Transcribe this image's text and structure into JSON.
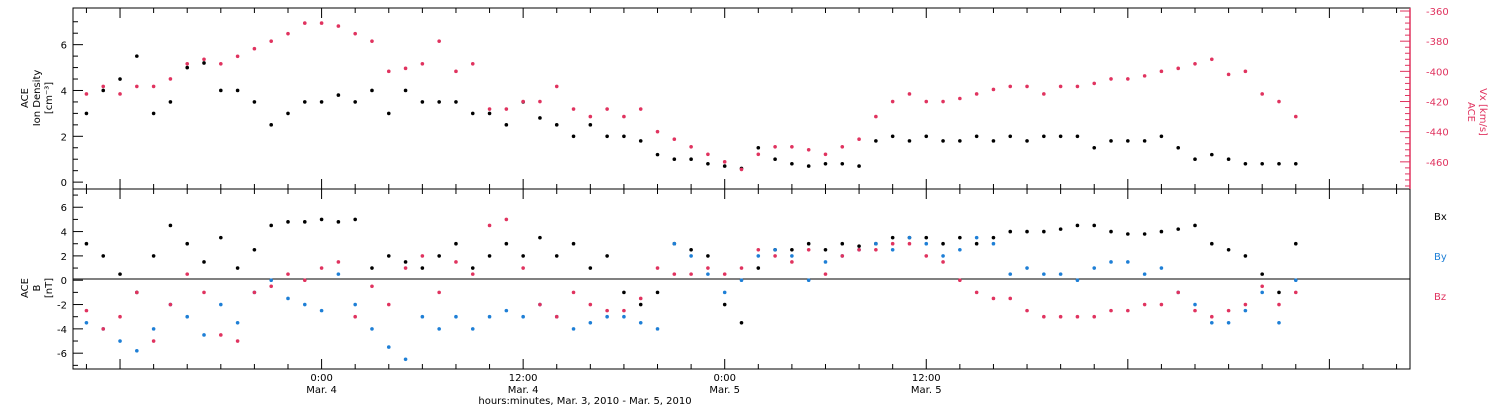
{
  "colors": {
    "black": "#000000",
    "pink": "#e0335f",
    "blue": "#1e7fd6"
  },
  "chart_data": [
    {
      "type": "scatter",
      "panel": "top",
      "ylabel_lines": [
        "ACE",
        "Ion Density",
        "[cm⁻³]"
      ],
      "ylim": [
        -0.3,
        7.6
      ],
      "yticks": [
        0,
        2,
        4,
        6
      ],
      "y2label_lines": [
        "ACE",
        "Vx [km/s]"
      ],
      "y2lim": [
        -478,
        -358
      ],
      "y2ticks": [
        -360,
        -380,
        -400,
        -420,
        -440,
        -460
      ],
      "xlim_hours": [
        -14.8,
        64.8
      ],
      "series": [
        {
          "key": "density",
          "color": "#000000",
          "axis": "left",
          "x": [
            -14,
            -13,
            -12,
            -11,
            -10,
            -9,
            -8,
            -7,
            -6,
            -5,
            -4,
            -3,
            -2,
            -1,
            0,
            1,
            2,
            3,
            4,
            5,
            6,
            7,
            8,
            9,
            10,
            11,
            12,
            13,
            14,
            15,
            16,
            17,
            18,
            19,
            20,
            21,
            22,
            23,
            24,
            25,
            26,
            27,
            28,
            29,
            30,
            31,
            32,
            33,
            34,
            35,
            36,
            37,
            38,
            39,
            40,
            41,
            42,
            43,
            44,
            45,
            46,
            47,
            48,
            49,
            50,
            51,
            52,
            53,
            54,
            55,
            56,
            57,
            58
          ],
          "y": [
            3.0,
            4.0,
            4.5,
            5.5,
            3.0,
            3.5,
            5.0,
            5.2,
            4.0,
            4.0,
            3.5,
            2.5,
            3.0,
            3.5,
            3.5,
            3.8,
            3.5,
            4.0,
            3.0,
            4.0,
            3.5,
            3.5,
            3.5,
            3.0,
            3.0,
            2.5,
            3.5,
            2.8,
            2.5,
            2.0,
            2.5,
            2.0,
            2.0,
            1.8,
            1.2,
            1.0,
            1.0,
            0.8,
            0.7,
            0.6,
            1.5,
            1.0,
            0.8,
            0.7,
            0.8,
            0.8,
            0.7,
            1.8,
            2.0,
            1.8,
            2.0,
            1.8,
            1.8,
            2.0,
            1.8,
            2.0,
            1.8,
            2.0,
            2.0,
            2.0,
            1.5,
            1.8,
            1.8,
            1.8,
            2.0,
            1.5,
            1.0,
            1.2,
            1.0,
            0.8,
            0.8,
            0.8,
            0.8
          ]
        },
        {
          "key": "vx",
          "color": "#e0335f",
          "axis": "right",
          "x": [
            -14,
            -13,
            -12,
            -11,
            -10,
            -9,
            -8,
            -7,
            -6,
            -5,
            -4,
            -3,
            -2,
            -1,
            0,
            1,
            2,
            3,
            4,
            5,
            6,
            7,
            8,
            9,
            10,
            11,
            12,
            13,
            14,
            15,
            16,
            17,
            18,
            19,
            20,
            21,
            22,
            23,
            24,
            25,
            26,
            27,
            28,
            29,
            30,
            31,
            32,
            33,
            34,
            35,
            36,
            37,
            38,
            39,
            40,
            41,
            42,
            43,
            44,
            45,
            46,
            47,
            48,
            49,
            50,
            51,
            52,
            53,
            54,
            55,
            56,
            57,
            58
          ],
          "y": [
            -415,
            -410,
            -415,
            -410,
            -410,
            -405,
            -395,
            -392,
            -395,
            -390,
            -385,
            -380,
            -375,
            -368,
            -368,
            -370,
            -375,
            -380,
            -400,
            -398,
            -395,
            -380,
            -400,
            -395,
            -425,
            -425,
            -420,
            -420,
            -410,
            -425,
            -430,
            -425,
            -430,
            -425,
            -440,
            -445,
            -450,
            -455,
            -460,
            -465,
            -455,
            -450,
            -450,
            -452,
            -455,
            -450,
            -445,
            -430,
            -420,
            -415,
            -420,
            -420,
            -418,
            -415,
            -412,
            -410,
            -410,
            -415,
            -410,
            -410,
            -408,
            -405,
            -405,
            -403,
            -400,
            -398,
            -395,
            -392,
            -402,
            -400,
            -415,
            -420,
            -430
          ]
        }
      ]
    },
    {
      "type": "scatter",
      "panel": "bottom",
      "ylabel_lines": [
        "ACE",
        "B",
        "[nT]"
      ],
      "ylim": [
        -7.3,
        7.5
      ],
      "yticks": [
        -6,
        -4,
        -2,
        0,
        2,
        4,
        6
      ],
      "xlim_hours": [
        -14.8,
        64.8
      ],
      "zero_line": true,
      "legend": [
        "Bx",
        "By",
        "Bz"
      ],
      "series": [
        {
          "key": "Bx",
          "name": "Bx",
          "color": "#000000",
          "x": [
            -14,
            -13,
            -12,
            -11,
            -10,
            -9,
            -8,
            -7,
            -6,
            -5,
            -4,
            -3,
            -2,
            -1,
            0,
            1,
            2,
            3,
            4,
            5,
            6,
            7,
            8,
            9,
            10,
            11,
            12,
            13,
            14,
            15,
            16,
            17,
            18,
            19,
            20,
            21,
            22,
            23,
            24,
            25,
            26,
            27,
            28,
            29,
            30,
            31,
            32,
            33,
            34,
            35,
            36,
            37,
            38,
            39,
            40,
            41,
            42,
            43,
            44,
            45,
            46,
            47,
            48,
            49,
            50,
            51,
            52,
            53,
            54,
            55,
            56,
            57,
            58
          ],
          "y": [
            3.0,
            2.0,
            0.5,
            -1.0,
            2.0,
            4.5,
            3.0,
            1.5,
            3.5,
            1.0,
            2.5,
            4.5,
            4.8,
            4.8,
            5.0,
            4.8,
            5.0,
            1.0,
            2.0,
            1.5,
            1.0,
            2.0,
            3.0,
            1.0,
            2.0,
            3.0,
            2.0,
            3.5,
            2.0,
            3.0,
            1.0,
            2.0,
            -1.0,
            -2.0,
            -1.0,
            3.0,
            2.5,
            2.0,
            -2.0,
            -3.5,
            1.0,
            2.5,
            2.5,
            3.0,
            2.5,
            3.0,
            2.8,
            3.0,
            3.5,
            3.5,
            3.5,
            3.0,
            3.5,
            3.0,
            3.5,
            4.0,
            4.0,
            4.0,
            4.2,
            4.5,
            4.5,
            4.0,
            3.8,
            3.8,
            4.0,
            4.2,
            4.5,
            3.0,
            2.5,
            2.0,
            0.5,
            -1.0,
            3.0
          ]
        },
        {
          "key": "By",
          "name": "By",
          "color": "#1e7fd6",
          "x": [
            -14,
            -13,
            -12,
            -11,
            -10,
            -9,
            -8,
            -7,
            -6,
            -5,
            -4,
            -3,
            -2,
            -1,
            0,
            1,
            2,
            3,
            4,
            5,
            6,
            7,
            8,
            9,
            10,
            11,
            12,
            13,
            14,
            15,
            16,
            17,
            18,
            19,
            20,
            21,
            22,
            23,
            24,
            25,
            26,
            27,
            28,
            29,
            30,
            31,
            32,
            33,
            34,
            35,
            36,
            37,
            38,
            39,
            40,
            41,
            42,
            43,
            44,
            45,
            46,
            47,
            48,
            49,
            50,
            51,
            52,
            53,
            54,
            55,
            56,
            57,
            58
          ],
          "y": [
            -3.5,
            -4.0,
            -5.0,
            -5.8,
            -4.0,
            -2.0,
            -3.0,
            -4.5,
            -2.0,
            -3.5,
            -1.0,
            0.0,
            -1.5,
            -2.0,
            -2.5,
            0.5,
            -2.0,
            -4.0,
            -5.5,
            -6.5,
            -3.0,
            -4.0,
            -3.0,
            -4.0,
            -3.0,
            -2.5,
            -3.0,
            -2.0,
            -3.0,
            -4.0,
            -3.5,
            -3.0,
            -3.0,
            -3.5,
            -4.0,
            3.0,
            2.0,
            0.5,
            -1.0,
            0.0,
            2.0,
            2.5,
            2.0,
            0.0,
            1.5,
            2.0,
            2.5,
            3.0,
            2.5,
            3.5,
            3.0,
            2.0,
            2.5,
            3.5,
            3.0,
            0.5,
            1.0,
            0.5,
            0.5,
            0.0,
            1.0,
            1.5,
            1.5,
            0.5,
            1.0,
            -1.0,
            -2.0,
            -3.5,
            -3.5,
            -2.5,
            -1.0,
            -3.5,
            0.0
          ]
        },
        {
          "key": "Bz",
          "name": "Bz",
          "color": "#e0335f",
          "x": [
            -14,
            -13,
            -12,
            -11,
            -10,
            -9,
            -8,
            -7,
            -6,
            -5,
            -4,
            -3,
            -2,
            -1,
            0,
            1,
            2,
            3,
            4,
            5,
            6,
            7,
            8,
            9,
            10,
            11,
            12,
            13,
            14,
            15,
            16,
            17,
            18,
            19,
            20,
            21,
            22,
            23,
            24,
            25,
            26,
            27,
            28,
            29,
            30,
            31,
            32,
            33,
            34,
            35,
            36,
            37,
            38,
            39,
            40,
            41,
            42,
            43,
            44,
            45,
            46,
            47,
            48,
            49,
            50,
            51,
            52,
            53,
            54,
            55,
            56,
            57,
            58
          ],
          "y": [
            -2.5,
            -4.0,
            -3.0,
            -1.0,
            -5.0,
            -2.0,
            0.5,
            -1.0,
            -4.5,
            -5.0,
            -1.0,
            -0.5,
            0.5,
            0.0,
            1.0,
            1.5,
            -3.0,
            -0.5,
            -2.0,
            1.0,
            2.0,
            -1.0,
            1.5,
            0.5,
            4.5,
            5.0,
            1.0,
            -2.0,
            -3.0,
            -1.0,
            -2.0,
            -2.5,
            -2.5,
            -1.5,
            1.0,
            0.5,
            0.5,
            1.0,
            0.5,
            1.0,
            2.5,
            2.0,
            1.5,
            2.5,
            0.5,
            2.0,
            2.5,
            2.5,
            3.0,
            3.0,
            2.0,
            1.5,
            0.0,
            -1.0,
            -1.5,
            -1.5,
            -2.5,
            -3.0,
            -3.0,
            -3.0,
            -3.0,
            -2.5,
            -2.5,
            -2.0,
            -2.0,
            -1.0,
            -2.5,
            -3.0,
            -2.5,
            -2.0,
            -0.5,
            -2.0,
            -1.0
          ]
        }
      ]
    }
  ],
  "x_axis": {
    "major_ticks": [
      {
        "hour": 0,
        "time": "0:00",
        "date": "Mar. 4"
      },
      {
        "hour": 12,
        "time": "12:00",
        "date": "Mar. 4"
      },
      {
        "hour": 24,
        "time": "0:00",
        "date": "Mar. 5"
      },
      {
        "hour": 36,
        "time": "12:00",
        "date": "Mar. 5"
      }
    ],
    "title": "hours:minutes, Mar.  3, 2010 - Mar.  5, 2010"
  }
}
